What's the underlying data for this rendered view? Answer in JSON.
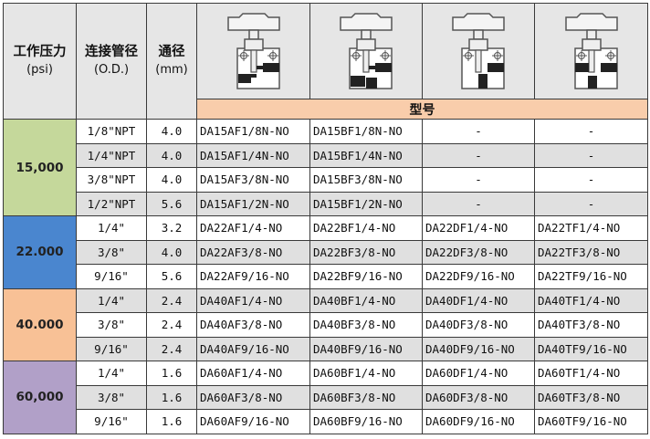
{
  "header": {
    "pressure": "工作压力",
    "pressure_unit": "(psi)",
    "tube": "连接管径",
    "tube_unit": "(O.D.)",
    "bore": "通径",
    "bore_unit": "(mm)",
    "model": "型号",
    "valve_icons": [
      "valve-diagram-a-icon",
      "valve-diagram-b-icon",
      "valve-diagram-d-icon",
      "valve-diagram-t-icon"
    ]
  },
  "groups": [
    {
      "pressure": "15,000",
      "color": "#c5d89b",
      "rows": [
        {
          "od": "1/8\"NPT",
          "bore": "4.0",
          "models": [
            "DA15AF1/8N-NO",
            "DA15BF1/8N-NO",
            "-",
            "-"
          ]
        },
        {
          "od": "1/4\"NPT",
          "bore": "4.0",
          "models": [
            "DA15AF1/4N-NO",
            "DA15BF1/4N-NO",
            "-",
            "-"
          ]
        },
        {
          "od": "3/8\"NPT",
          "bore": "4.0",
          "models": [
            "DA15AF3/8N-NO",
            "DA15BF3/8N-NO",
            "-",
            "-"
          ]
        },
        {
          "od": "1/2\"NPT",
          "bore": "5.6",
          "models": [
            "DA15AF1/2N-NO",
            "DA15BF1/2N-NO",
            "-",
            "-"
          ]
        }
      ]
    },
    {
      "pressure": "22.000",
      "color": "#4a86cf",
      "rows": [
        {
          "od": "1/4\"",
          "bore": "3.2",
          "models": [
            "DA22AF1/4-NO",
            "DA22BF1/4-NO",
            "DA22DF1/4-NO",
            "DA22TF1/4-NO"
          ]
        },
        {
          "od": "3/8\"",
          "bore": "4.0",
          "models": [
            "DA22AF3/8-NO",
            "DA22BF3/8-NO",
            "DA22DF3/8-NO",
            "DA22TF3/8-NO"
          ]
        },
        {
          "od": "9/16\"",
          "bore": "5.6",
          "models": [
            "DA22AF9/16-NO",
            "DA22BF9/16-NO",
            "DA22DF9/16-NO",
            "DA22TF9/16-NO"
          ]
        }
      ]
    },
    {
      "pressure": "40.000",
      "color": "#f8c196",
      "rows": [
        {
          "od": "1/4\"",
          "bore": "2.4",
          "models": [
            "DA40AF1/4-NO",
            "DA40BF1/4-NO",
            "DA40DF1/4-NO",
            "DA40TF1/4-NO"
          ]
        },
        {
          "od": "3/8\"",
          "bore": "2.4",
          "models": [
            "DA40AF3/8-NO",
            "DA40BF3/8-NO",
            "DA40DF3/8-NO",
            "DA40TF3/8-NO"
          ]
        },
        {
          "od": "9/16\"",
          "bore": "2.4",
          "models": [
            "DA40AF9/16-NO",
            "DA40BF9/16-NO",
            "DA40DF9/16-NO",
            "DA40TF9/16-NO"
          ]
        }
      ]
    },
    {
      "pressure": "60,000",
      "color": "#b1a0c8",
      "rows": [
        {
          "od": "1/4\"",
          "bore": "1.6",
          "models": [
            "DA60AF1/4-NO",
            "DA60BF1/4-NO",
            "DA60DF1/4-NO",
            "DA60TF1/4-NO"
          ]
        },
        {
          "od": "3/8\"",
          "bore": "1.6",
          "models": [
            "DA60AF3/8-NO",
            "DA60BF3/8-NO",
            "DA60DF3/8-NO",
            "DA60TF3/8-NO"
          ]
        },
        {
          "od": "9/16\"",
          "bore": "1.6",
          "models": [
            "DA60AF9/16-NO",
            "DA60BF9/16-NO",
            "DA60DF9/16-NO",
            "DA60TF9/16-NO"
          ]
        }
      ]
    }
  ]
}
